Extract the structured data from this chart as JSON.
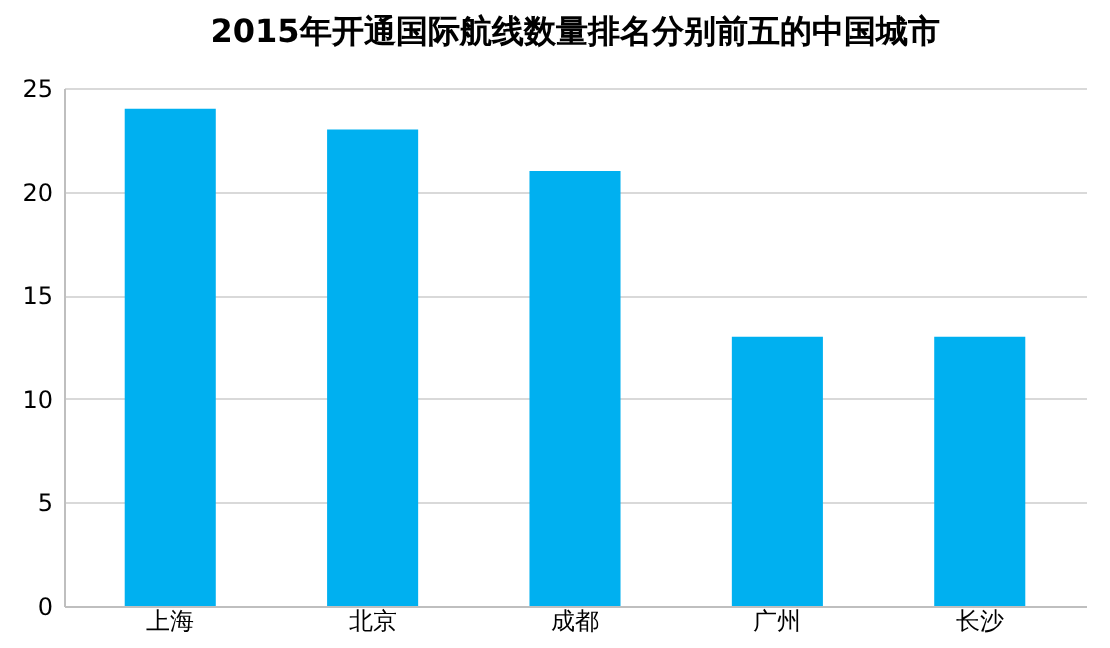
{
  "chart_data": {
    "type": "bar",
    "title": "2015年开通国际航线数量排名分别前五的中国城市",
    "categories": [
      "上海",
      "北京",
      "成都",
      "广州",
      "长沙"
    ],
    "values": [
      24,
      23,
      21,
      13,
      13
    ],
    "color": "#00b0f0",
    "ylim": [
      0,
      25
    ],
    "yticks": [
      0,
      5,
      10,
      15,
      20,
      25
    ],
    "grid": "y"
  }
}
